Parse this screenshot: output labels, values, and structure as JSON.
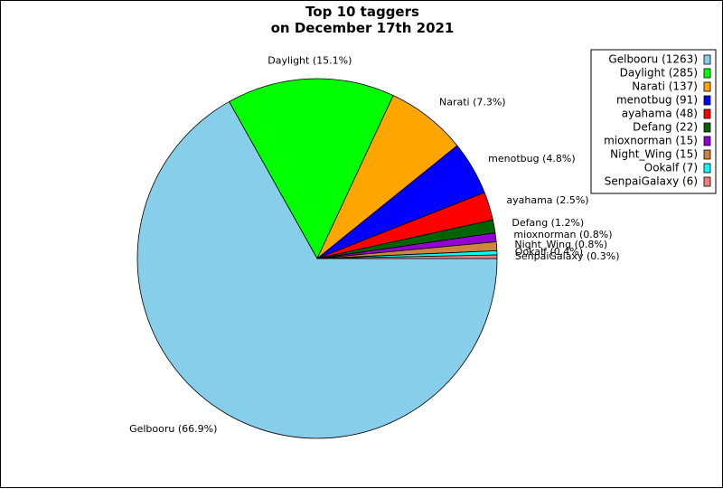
{
  "chart_data": {
    "type": "pie",
    "title": "Top 10 taggers",
    "subtitle": "on December 17th 2021",
    "legend_position": "top-right",
    "slices": [
      {
        "name": "Gelbooru",
        "value": 1263,
        "label": "Gelbooru (66.9%)",
        "legend": "Gelbooru (1263)",
        "color": "#87ceeb"
      },
      {
        "name": "Daylight",
        "value": 285,
        "label": "Daylight (15.1%)",
        "legend": "Daylight (285)",
        "color": "#00ff00"
      },
      {
        "name": "Narati",
        "value": 137,
        "label": "Narati (7.3%)",
        "legend": "Narati (137)",
        "color": "#ffa500"
      },
      {
        "name": "menotbug",
        "value": 91,
        "label": "menotbug (4.8%)",
        "legend": "menotbug (91)",
        "color": "#0000ff"
      },
      {
        "name": "ayahama",
        "value": 48,
        "label": "ayahama (2.5%)",
        "legend": "ayahama (48)",
        "color": "#ff0000"
      },
      {
        "name": "Defang",
        "value": 22,
        "label": "Defang (1.2%)",
        "legend": "Defang (22)",
        "color": "#006400"
      },
      {
        "name": "mioxnorman",
        "value": 15,
        "label": "mioxnorman (0.8%)",
        "legend": "mioxnorman (15)",
        "color": "#9400d3"
      },
      {
        "name": "Night_Wing",
        "value": 15,
        "label": "Night_Wing (0.8%)",
        "legend": "Night_Wing (15)",
        "color": "#cd853f"
      },
      {
        "name": "Ookalf",
        "value": 7,
        "label": "Ookalf (0.4%)",
        "legend": "Ookalf (7)",
        "color": "#00ffff"
      },
      {
        "name": "SenpaiGalaxy",
        "value": 6,
        "label": "SenpaiGalaxy (0.3%)",
        "legend": "SenpaiGalaxy (6)",
        "color": "#f08080"
      }
    ]
  }
}
